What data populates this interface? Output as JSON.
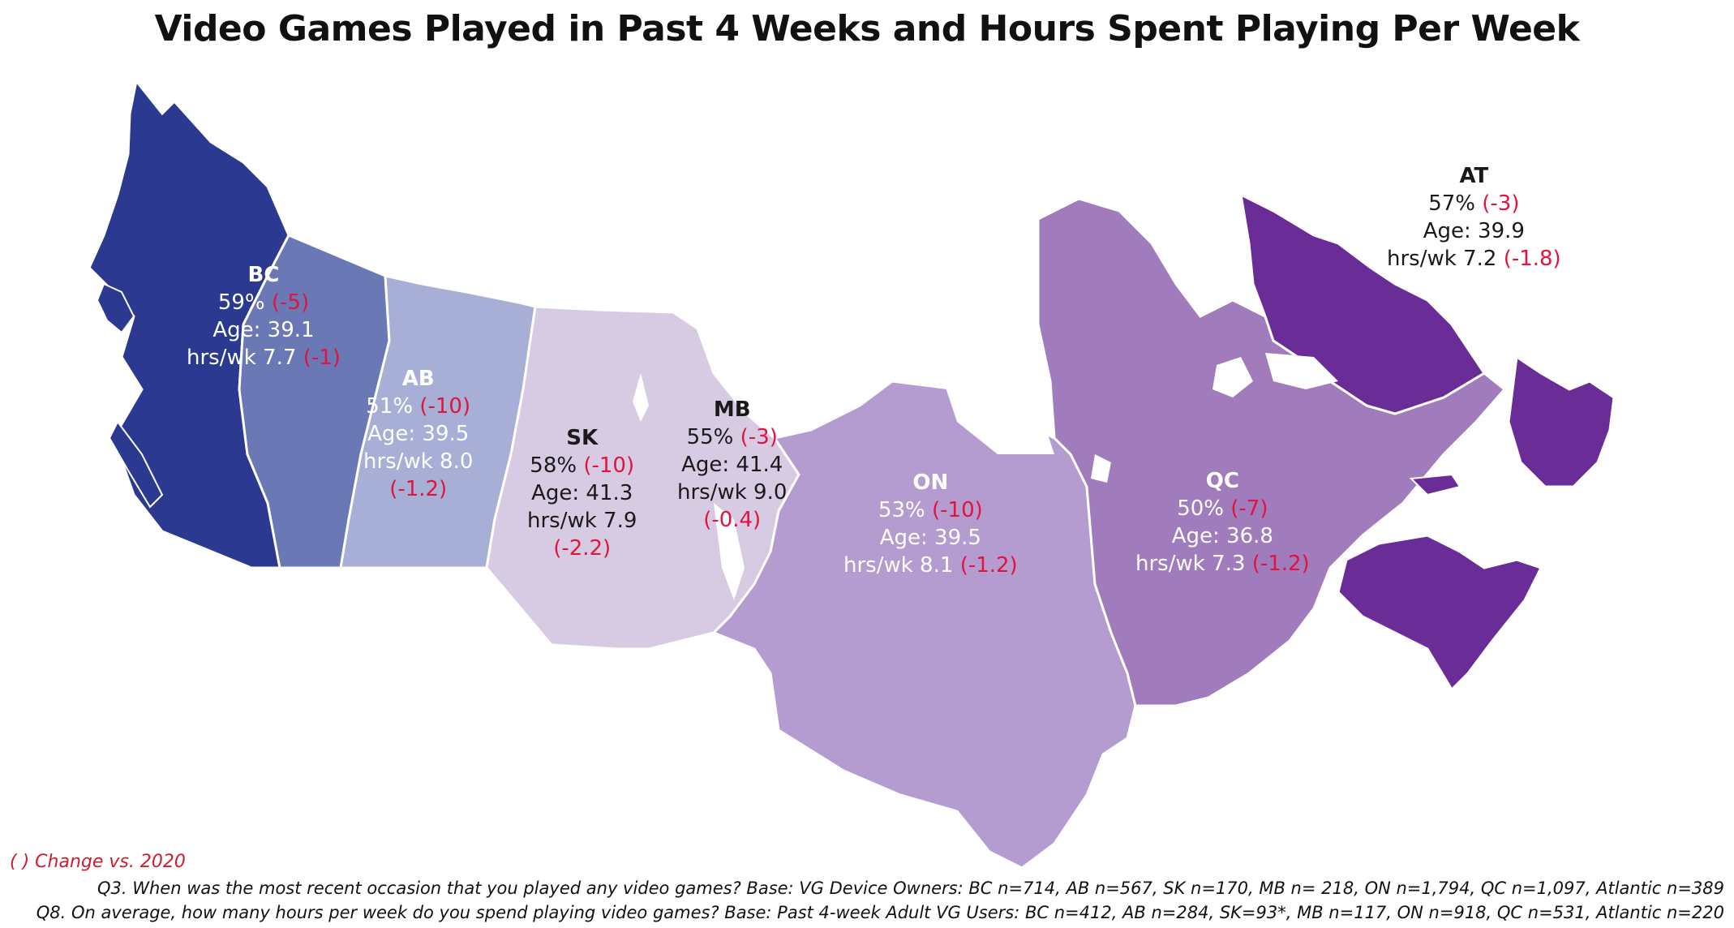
{
  "title": "Video Games Played in Past 4 Weeks and Hours Spent Playing Per Week",
  "colors": {
    "BC": "#2b3990",
    "AB": "#6b78b6",
    "SK": "#a8afd6",
    "MB": "#d7cbe4",
    "ON": "#b49cd0",
    "QC": "#a07cbd",
    "AT": "#6a2d97",
    "change_text": "#e0143c"
  },
  "regions": [
    {
      "code": "BC",
      "pct": "59%",
      "pct_change": "(-5)",
      "age": "Age: 39.1",
      "hrs": "hrs/wk 7.7",
      "hrs_change": "(-1)"
    },
    {
      "code": "AB",
      "pct": "51%",
      "pct_change": "(-10)",
      "age": "Age: 39.5",
      "hrs": "hrs/wk 8.0",
      "hrs_change": "(-1.2)"
    },
    {
      "code": "SK",
      "pct": "58%",
      "pct_change": "(-10)",
      "age": "Age: 41.3",
      "hrs": "hrs/wk 7.9",
      "hrs_change": "(-2.2)"
    },
    {
      "code": "MB",
      "pct": "55%",
      "pct_change": "(-3)",
      "age": "Age: 41.4",
      "hrs": "hrs/wk 9.0",
      "hrs_change": "(-0.4)"
    },
    {
      "code": "ON",
      "pct": "53%",
      "pct_change": "(-10)",
      "age": "Age: 39.5",
      "hrs": "hrs/wk 8.1",
      "hrs_change": "(-1.2)"
    },
    {
      "code": "QC",
      "pct": "50%",
      "pct_change": "(-7)",
      "age": "Age: 36.8",
      "hrs": "hrs/wk 7.3",
      "hrs_change": "(-1.2)"
    },
    {
      "code": "AT",
      "pct": "57%",
      "pct_change": "(-3)",
      "age": "Age: 39.9",
      "hrs": "hrs/wk 7.2",
      "hrs_change": "(-1.8)"
    }
  ],
  "legend": "( ) Change vs. 2020",
  "notes": {
    "q3": "Q3. When was the most recent occasion that you played any video games? Base: VG Device Owners: BC n=714, AB n=567, SK n=170, MB n= 218, ON n=1,794, QC n=1,097, Atlantic n=389",
    "q8": "Q8. On average, how many hours per week do you spend playing video games? Base: Past 4-week Adult VG Users: BC n=412, AB n=284, SK=93*, MB n=117, ON n=918, QC n=531, Atlantic n=220"
  }
}
